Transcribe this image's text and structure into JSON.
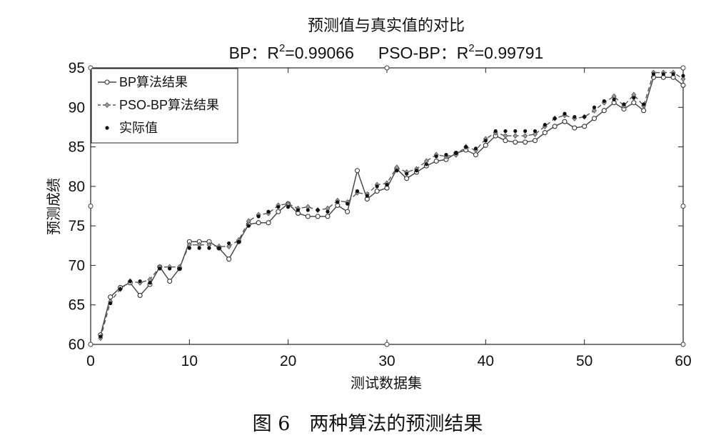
{
  "chart_data": {
    "type": "line",
    "title": "预测值与真实值的对比",
    "subtitle": {
      "bp_prefix": "BP：R",
      "bp_sup": "2",
      "bp_value": "=0.99066",
      "pso_prefix": "PSO-BP：R",
      "pso_sup": "2",
      "pso_value": "=0.99791"
    },
    "xlabel": "测试数据集",
    "ylabel": "预测成绩",
    "xlim": [
      0,
      60
    ],
    "ylim": [
      60,
      95
    ],
    "xticks": [
      "0",
      "10",
      "20",
      "30",
      "40",
      "50",
      "60"
    ],
    "yticks": [
      "60",
      "65",
      "70",
      "75",
      "80",
      "85",
      "90",
      "95"
    ],
    "legend_position": "top-left",
    "grid": false,
    "x": [
      1,
      2,
      3,
      4,
      5,
      6,
      7,
      8,
      9,
      10,
      11,
      12,
      13,
      14,
      15,
      16,
      17,
      18,
      19,
      20,
      21,
      22,
      23,
      24,
      25,
      26,
      27,
      28,
      29,
      30,
      31,
      32,
      33,
      34,
      35,
      36,
      37,
      38,
      39,
      40,
      41,
      42,
      43,
      44,
      45,
      46,
      47,
      48,
      49,
      50,
      51,
      52,
      53,
      54,
      55,
      56,
      57,
      58,
      59,
      60
    ],
    "series": [
      {
        "name": "BP算法结果",
        "marker": "circle",
        "style": "solid",
        "values": [
          61.2,
          66.0,
          67.2,
          67.8,
          66.2,
          67.6,
          69.8,
          68.0,
          69.6,
          73.0,
          73.0,
          73.0,
          72.2,
          70.8,
          73.0,
          75.2,
          75.4,
          75.4,
          76.8,
          77.8,
          76.6,
          76.2,
          76.2,
          76.2,
          77.6,
          76.8,
          82.0,
          78.4,
          79.4,
          79.8,
          82.2,
          81.0,
          81.8,
          82.6,
          83.2,
          83.4,
          84.2,
          84.6,
          84.0,
          85.2,
          86.4,
          85.8,
          85.6,
          85.6,
          85.8,
          86.8,
          87.6,
          88.2,
          87.4,
          87.6,
          88.6,
          89.6,
          90.6,
          89.8,
          90.6,
          89.6,
          93.8,
          93.8,
          93.8,
          92.8
        ]
      },
      {
        "name": "PSO-BP算法结果",
        "marker": "diamond",
        "style": "dashed",
        "values": [
          60.8,
          65.4,
          67.0,
          68.0,
          67.8,
          68.2,
          69.8,
          69.8,
          69.8,
          72.6,
          72.6,
          72.6,
          72.4,
          72.4,
          73.2,
          75.6,
          76.4,
          76.6,
          77.6,
          77.8,
          77.2,
          77.4,
          77.0,
          77.2,
          78.2,
          78.0,
          79.2,
          79.0,
          80.2,
          80.4,
          82.4,
          81.8,
          82.2,
          83.2,
          84.0,
          83.8,
          84.0,
          85.0,
          84.6,
          86.0,
          86.8,
          86.4,
          86.4,
          86.4,
          86.6,
          87.6,
          88.6,
          89.0,
          88.6,
          88.8,
          89.6,
          90.6,
          91.4,
          90.2,
          91.6,
          90.2,
          94.4,
          94.4,
          94.4,
          93.6
        ]
      },
      {
        "name": "实际值",
        "marker": "dot",
        "style": "none",
        "values": [
          61.0,
          65.2,
          67.0,
          68.0,
          68.0,
          67.8,
          69.6,
          69.6,
          69.6,
          72.2,
          72.2,
          72.2,
          72.2,
          72.8,
          73.0,
          75.0,
          76.2,
          76.8,
          77.4,
          77.4,
          77.0,
          77.0,
          77.0,
          76.8,
          78.0,
          77.8,
          79.4,
          78.8,
          80.0,
          80.2,
          82.0,
          81.6,
          82.0,
          82.8,
          83.8,
          84.0,
          84.2,
          85.0,
          84.8,
          85.8,
          87.0,
          87.0,
          87.0,
          87.0,
          87.0,
          87.8,
          88.6,
          89.2,
          88.8,
          88.8,
          90.0,
          90.8,
          91.0,
          90.4,
          91.2,
          90.4,
          94.2,
          94.2,
          94.2,
          94.0
        ]
      }
    ]
  },
  "caption": "图 6　两种算法的预测结果"
}
